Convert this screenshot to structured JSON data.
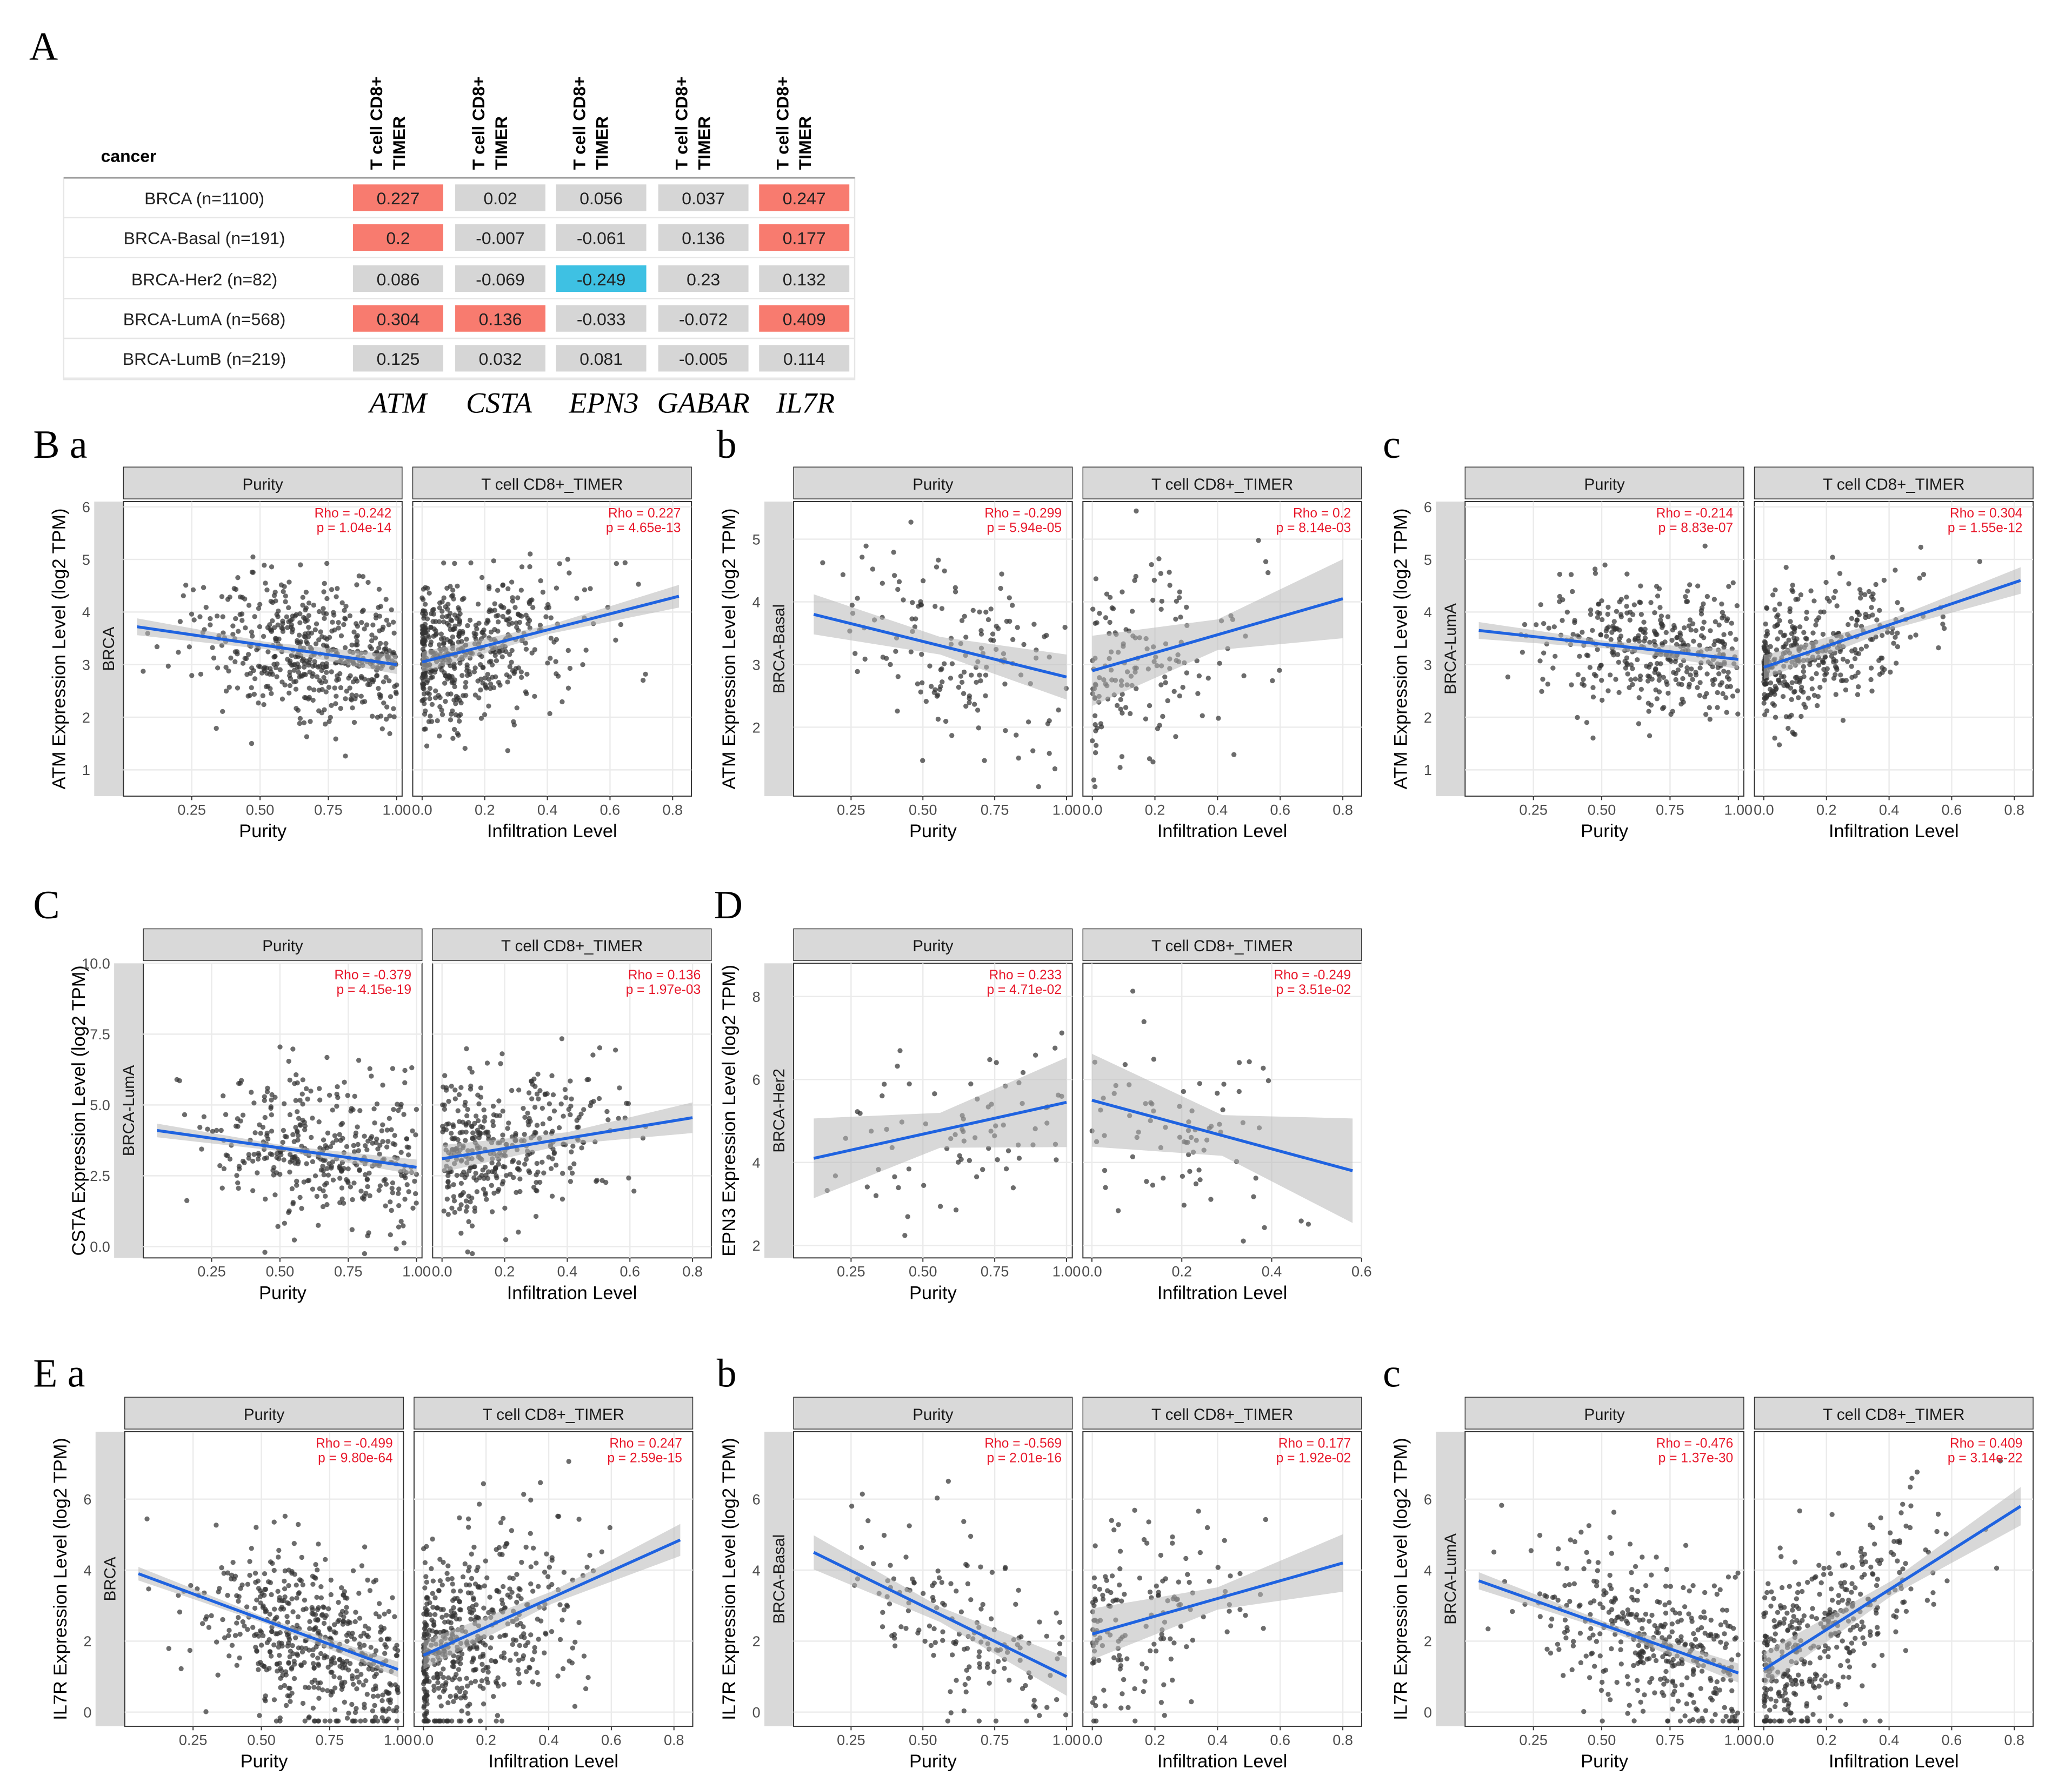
{
  "panel_labels": {
    "A": "A",
    "B": "B a",
    "Bb": "b",
    "Bc": "c",
    "C": "C",
    "D": "D",
    "E": "E a",
    "Eb": "b",
    "Ec": "c"
  },
  "colors": {
    "positive": "#f87b6f",
    "negative": "#3ec1e3",
    "neutral": "#d6d6d6",
    "strip": "#d9d9d9",
    "line": "#1f63e0",
    "band": "#b8b8b8",
    "point": "#333333",
    "stat": "#e8182b"
  },
  "heatmap": {
    "row_header": "cancer",
    "column_header": "T cell CD8+ TIMER",
    "column_header_line1": "T cell CD8+",
    "column_header_line2": "TIMER",
    "genes": [
      "ATM",
      "CSTA",
      "EPN3",
      "GABAR",
      "IL7R"
    ],
    "rows": [
      "BRCA (n=1100)",
      "BRCA-Basal (n=191)",
      "BRCA-Her2 (n=82)",
      "BRCA-LumA (n=568)",
      "BRCA-LumB (n=219)"
    ],
    "values": [
      [
        "0.227",
        "0.02",
        "0.056",
        "0.037",
        "0.247"
      ],
      [
        "0.2",
        "-0.007",
        "-0.061",
        "0.136",
        "0.177"
      ],
      [
        "0.086",
        "-0.069",
        "-0.249",
        "0.23",
        "0.132"
      ],
      [
        "0.304",
        "0.136",
        "-0.033",
        "-0.072",
        "0.409"
      ],
      [
        "0.125",
        "0.032",
        "0.081",
        "-0.005",
        "0.114"
      ]
    ],
    "colors": [
      [
        "pos",
        "neu",
        "neu",
        "neu",
        "pos"
      ],
      [
        "pos",
        "neu",
        "neu",
        "neu",
        "pos"
      ],
      [
        "neu",
        "neu",
        "neg",
        "neu",
        "neu"
      ],
      [
        "pos",
        "pos",
        "neu",
        "neu",
        "pos"
      ],
      [
        "neu",
        "neu",
        "neu",
        "neu",
        "neu"
      ]
    ]
  },
  "chart_data": [
    {
      "type": "scatter",
      "id": "Ba",
      "gene": "ATM",
      "cancer": "BRCA",
      "ylabel": "ATM Expression Level (log2 TPM)",
      "ylim": [
        0.5,
        6.1
      ],
      "yticks": [
        1,
        2,
        3,
        4,
        5,
        6
      ],
      "panels": [
        {
          "strip": "Purity",
          "xlabel": "Purity",
          "xlim": [
            0.0,
            1.02
          ],
          "xticks": [
            "0.25",
            "0.50",
            "0.75",
            "1.00"
          ],
          "xtickv": [
            0.25,
            0.5,
            0.75,
            1.0
          ],
          "rho": "Rho = -0.242",
          "p": "p = 1.04e-14",
          "line": [
            [
              0.05,
              3.72
            ],
            [
              1.0,
              3.0
            ]
          ],
          "band": 0.1,
          "n": 520,
          "seed": 11,
          "cx": [
            0.05,
            1.0
          ],
          "skew": 0.68,
          "sd": 0.7
        },
        {
          "strip": "T cell CD8+_TIMER",
          "xlabel": "Infiltration Level",
          "xlim": [
            -0.03,
            0.86
          ],
          "xticks": [
            "0.0",
            "0.2",
            "0.4",
            "0.6",
            "0.8"
          ],
          "xtickv": [
            0,
            0.2,
            0.4,
            0.6,
            0.8
          ],
          "rho": "Rho = 0.227",
          "p": "p = 4.65e-13",
          "line": [
            [
              0.0,
              3.05
            ],
            [
              0.82,
              4.3
            ]
          ],
          "band": 0.12,
          "n": 520,
          "seed": 12,
          "cx": [
            0,
            0.82
          ],
          "skew": 0.18,
          "sd": 0.7,
          "wall": true
        }
      ]
    },
    {
      "type": "scatter",
      "id": "Bb",
      "gene": "ATM",
      "cancer": "BRCA-Basal",
      "ylabel": "ATM Expression Level (log2 TPM)",
      "ylim": [
        0.9,
        5.6
      ],
      "yticks": [
        2,
        3,
        4,
        5
      ],
      "panels": [
        {
          "strip": "Purity",
          "xlabel": "Purity",
          "xlim": [
            0.05,
            1.02
          ],
          "xticks": [
            "0.25",
            "0.50",
            "0.75",
            "1.00"
          ],
          "xtickv": [
            0.25,
            0.5,
            0.75,
            1.0
          ],
          "rho": "Rho = -0.299",
          "p": "p = 5.94e-05",
          "line": [
            [
              0.12,
              3.8
            ],
            [
              1.0,
              2.8
            ]
          ],
          "band": 0.2,
          "n": 150,
          "seed": 21,
          "cx": [
            0.12,
            1.0
          ],
          "skew": 0.6,
          "sd": 0.75
        },
        {
          "strip": "T cell CD8+_TIMER",
          "xlabel": "Infiltration Level",
          "xlim": [
            -0.03,
            0.86
          ],
          "xticks": [
            "0.0",
            "0.2",
            "0.4",
            "0.6",
            "0.8"
          ],
          "xtickv": [
            0,
            0.2,
            0.4,
            0.6,
            0.8
          ],
          "rho": "Rho = 0.2",
          "p": "p = 8.14e-03",
          "line": [
            [
              0.0,
              2.9
            ],
            [
              0.8,
              4.05
            ]
          ],
          "band": 0.35,
          "n": 150,
          "seed": 22,
          "cx": [
            0,
            0.8
          ],
          "skew": 0.2,
          "sd": 0.75,
          "wall": true
        }
      ]
    },
    {
      "type": "scatter",
      "id": "Bc",
      "gene": "ATM",
      "cancer": "BRCA-LumA",
      "ylabel": "ATM Expression Level (log2 TPM)",
      "ylim": [
        0.5,
        6.1
      ],
      "yticks": [
        1,
        2,
        3,
        4,
        5,
        6
      ],
      "panels": [
        {
          "strip": "Purity",
          "xlabel": "Purity",
          "xlim": [
            0.0,
            1.02
          ],
          "xticks": [
            "0.25",
            "0.50",
            "0.75",
            "1.00"
          ],
          "xtickv": [
            0.25,
            0.5,
            0.75,
            1.0
          ],
          "rho": "Rho = -0.214",
          "p": "p = 8.83e-07",
          "line": [
            [
              0.05,
              3.65
            ],
            [
              1.0,
              3.1
            ]
          ],
          "band": 0.1,
          "n": 380,
          "seed": 31,
          "cx": [
            0.05,
            1.0
          ],
          "skew": 0.68,
          "sd": 0.6
        },
        {
          "strip": "T cell CD8+_TIMER",
          "xlabel": "Infiltration Level",
          "xlim": [
            -0.03,
            0.86
          ],
          "xticks": [
            "0.0",
            "0.2",
            "0.4",
            "0.6",
            "0.8"
          ],
          "xtickv": [
            0,
            0.2,
            0.4,
            0.6,
            0.8
          ],
          "rho": "Rho = 0.304",
          "p": "p = 1.55e-12",
          "line": [
            [
              0.0,
              2.95
            ],
            [
              0.82,
              4.6
            ]
          ],
          "band": 0.14,
          "n": 380,
          "seed": 32,
          "cx": [
            0,
            0.82
          ],
          "skew": 0.2,
          "sd": 0.6,
          "wall": true
        }
      ]
    },
    {
      "type": "scatter",
      "id": "C",
      "gene": "CSTA",
      "cancer": "BRCA-LumA",
      "ylabel": "CSTA Expression Level (log2 TPM)",
      "ylim": [
        -0.4,
        10.0
      ],
      "yticks": [
        0.0,
        2.5,
        5.0,
        7.5,
        10.0
      ],
      "ytickl": [
        "0.0",
        "2.5",
        "5.0",
        "7.5",
        "10.0"
      ],
      "panels": [
        {
          "strip": "Purity",
          "xlabel": "Purity",
          "xlim": [
            0.0,
            1.02
          ],
          "xticks": [
            "0.25",
            "0.50",
            "0.75",
            "1.00"
          ],
          "xtickv": [
            0.25,
            0.5,
            0.75,
            1.0
          ],
          "rho": "Rho = -0.379",
          "p": "p = 4.15e-19",
          "line": [
            [
              0.05,
              4.1
            ],
            [
              1.0,
              2.8
            ]
          ],
          "band": 0.15,
          "n": 380,
          "seed": 41,
          "cx": [
            0.05,
            1.0
          ],
          "skew": 0.65,
          "sd": 1.3
        },
        {
          "strip": "T cell CD8+_TIMER",
          "xlabel": "Infiltration Level",
          "xlim": [
            -0.03,
            0.86
          ],
          "xticks": [
            "0.0",
            "0.2",
            "0.4",
            "0.6",
            "0.8"
          ],
          "xtickv": [
            0,
            0.2,
            0.4,
            0.6,
            0.8
          ],
          "rho": "Rho = 0.136",
          "p": "p = 1.97e-03",
          "line": [
            [
              0.0,
              3.1
            ],
            [
              0.8,
              4.55
            ]
          ],
          "band": 0.3,
          "n": 380,
          "seed": 42,
          "cx": [
            0,
            0.8
          ],
          "skew": 0.22,
          "sd": 1.3
        }
      ]
    },
    {
      "type": "scatter",
      "id": "D",
      "gene": "EPN3",
      "cancer": "BRCA-Her2",
      "ylabel": "EPN3 Expression Level (log2 TPM)",
      "ylim": [
        1.7,
        8.8
      ],
      "yticks": [
        2,
        4,
        6,
        8
      ],
      "panels": [
        {
          "strip": "Purity",
          "xlabel": "Purity",
          "xlim": [
            0.05,
            1.02
          ],
          "xticks": [
            "0.25",
            "0.50",
            "0.75",
            "1.00"
          ],
          "xtickv": [
            0.25,
            0.5,
            0.75,
            1.0
          ],
          "rho": "Rho = 0.233",
          "p": "p = 4.71e-02",
          "line": [
            [
              0.12,
              4.1
            ],
            [
              1.0,
              5.45
            ]
          ],
          "band": 0.6,
          "n": 75,
          "seed": 51,
          "cx": [
            0.12,
            1.0
          ],
          "skew": 0.6,
          "sd": 1.1
        },
        {
          "strip": "T cell CD8+_TIMER",
          "xlabel": "Infiltration Level",
          "xlim": [
            -0.02,
            0.6
          ],
          "xticks": [
            "0.0",
            "0.2",
            "0.4",
            "0.6"
          ],
          "xtickv": [
            0,
            0.2,
            0.4,
            0.6
          ],
          "rho": "Rho = -0.249",
          "p": "p = 3.51e-02",
          "line": [
            [
              0.0,
              5.5
            ],
            [
              0.58,
              3.8
            ]
          ],
          "band": 0.7,
          "n": 75,
          "seed": 52,
          "cx": [
            0,
            0.58
          ],
          "skew": 0.3,
          "sd": 1.1
        }
      ]
    },
    {
      "type": "scatter",
      "id": "Ea",
      "gene": "IL7R",
      "cancer": "BRCA",
      "ylabel": "IL7R Expression Level (log2 TPM)",
      "ylim": [
        -0.4,
        7.9
      ],
      "yticks": [
        0,
        2,
        4,
        6
      ],
      "panels": [
        {
          "strip": "Purity",
          "xlabel": "Purity",
          "xlim": [
            0.0,
            1.02
          ],
          "xticks": [
            "0.25",
            "0.50",
            "0.75",
            "1.00"
          ],
          "xtickv": [
            0.25,
            0.5,
            0.75,
            1.0
          ],
          "rho": "Rho = -0.499",
          "p": "p = 9.80e-64",
          "line": [
            [
              0.05,
              3.9
            ],
            [
              1.0,
              1.2
            ]
          ],
          "band": 0.12,
          "n": 520,
          "seed": 61,
          "cx": [
            0.05,
            1.0
          ],
          "skew": 0.68,
          "sd": 1.2
        },
        {
          "strip": "T cell CD8+_TIMER",
          "xlabel": "Infiltration Level",
          "xlim": [
            -0.03,
            0.86
          ],
          "xticks": [
            "0.0",
            "0.2",
            "0.4",
            "0.6",
            "0.8"
          ],
          "xtickv": [
            0,
            0.2,
            0.4,
            0.6,
            0.8
          ],
          "rho": "Rho = 0.247",
          "p": "p = 2.59e-15",
          "line": [
            [
              0.0,
              1.6
            ],
            [
              0.82,
              4.85
            ]
          ],
          "band": 0.25,
          "n": 520,
          "seed": 62,
          "cx": [
            0,
            0.82
          ],
          "skew": 0.18,
          "sd": 1.3,
          "wall": true
        }
      ]
    },
    {
      "type": "scatter",
      "id": "Eb",
      "gene": "IL7R",
      "cancer": "BRCA-Basal",
      "ylabel": "IL7R Expression Level (log2 TPM)",
      "ylim": [
        -0.4,
        7.9
      ],
      "yticks": [
        0,
        2,
        4,
        6
      ],
      "panels": [
        {
          "strip": "Purity",
          "xlabel": "Purity",
          "xlim": [
            0.05,
            1.02
          ],
          "xticks": [
            "0.25",
            "0.50",
            "0.75",
            "1.00"
          ],
          "xtickv": [
            0.25,
            0.5,
            0.75,
            1.0
          ],
          "rho": "Rho = -0.569",
          "p": "p = 2.01e-16",
          "line": [
            [
              0.12,
              4.5
            ],
            [
              1.0,
              1.0
            ]
          ],
          "band": 0.3,
          "n": 150,
          "seed": 71,
          "cx": [
            0.12,
            1.0
          ],
          "skew": 0.6,
          "sd": 1.2
        },
        {
          "strip": "T cell CD8+_TIMER",
          "xlabel": "Infiltration Level",
          "xlim": [
            -0.03,
            0.86
          ],
          "xticks": [
            "0.0",
            "0.2",
            "0.4",
            "0.6",
            "0.8"
          ],
          "xtickv": [
            0,
            0.2,
            0.4,
            0.6,
            0.8
          ],
          "rho": "Rho = 0.177",
          "p": "p = 1.92e-02",
          "line": [
            [
              0.0,
              2.2
            ],
            [
              0.8,
              4.2
            ]
          ],
          "band": 0.45,
          "n": 150,
          "seed": 72,
          "cx": [
            0,
            0.8
          ],
          "skew": 0.2,
          "sd": 1.4,
          "wall": true
        }
      ]
    },
    {
      "type": "scatter",
      "id": "Ec",
      "gene": "IL7R",
      "cancer": "BRCA-LumA",
      "ylabel": "IL7R Expression Level (log2 TPM)",
      "ylim": [
        -0.4,
        7.9
      ],
      "yticks": [
        0,
        2,
        4,
        6
      ],
      "panels": [
        {
          "strip": "Purity",
          "xlabel": "Purity",
          "xlim": [
            0.0,
            1.02
          ],
          "xticks": [
            "0.25",
            "0.50",
            "0.75",
            "1.00"
          ],
          "xtickv": [
            0.25,
            0.5,
            0.75,
            1.0
          ],
          "rho": "Rho = -0.476",
          "p": "p = 1.37e-30",
          "line": [
            [
              0.05,
              3.7
            ],
            [
              1.0,
              1.1
            ]
          ],
          "band": 0.15,
          "n": 380,
          "seed": 81,
          "cx": [
            0.05,
            1.0
          ],
          "skew": 0.68,
          "sd": 1.2
        },
        {
          "strip": "T cell CD8+_TIMER",
          "xlabel": "Infiltration Level",
          "xlim": [
            -0.03,
            0.86
          ],
          "xticks": [
            "0.0",
            "0.2",
            "0.4",
            "0.6",
            "0.8"
          ],
          "xtickv": [
            0,
            0.2,
            0.4,
            0.6,
            0.8
          ],
          "rho": "Rho = 0.409",
          "p": "p = 3.14e-22",
          "line": [
            [
              0.0,
              1.2
            ],
            [
              0.82,
              5.8
            ]
          ],
          "band": 0.3,
          "n": 380,
          "seed": 82,
          "cx": [
            0,
            0.82
          ],
          "skew": 0.2,
          "sd": 1.2,
          "wall": true
        }
      ]
    }
  ]
}
